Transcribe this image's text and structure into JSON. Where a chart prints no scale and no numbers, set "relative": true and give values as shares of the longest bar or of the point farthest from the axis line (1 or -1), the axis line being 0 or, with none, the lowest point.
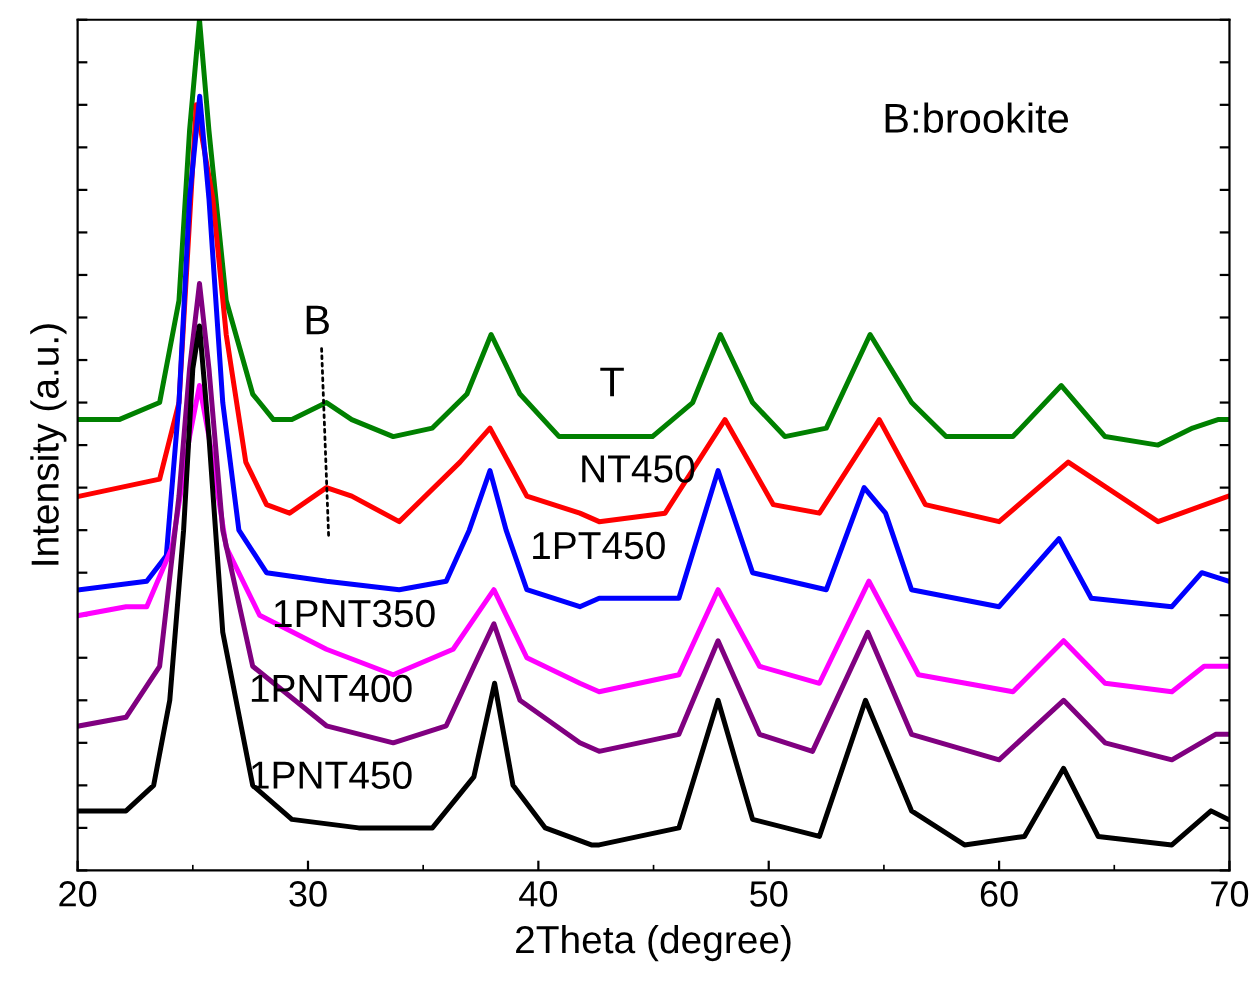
{
  "chart_data": {
    "type": "line",
    "relative": true,
    "xlabel": "2Theta (degree)",
    "ylabel": "Intensity (a.u.)",
    "xlim": [
      20,
      70
    ],
    "xticks": [
      20,
      30,
      40,
      50,
      60,
      70
    ],
    "tick_labels": "x",
    "grid": false,
    "marker": "none",
    "line_style": "solid",
    "annotations": [
      "B:brookite",
      "B",
      "T"
    ],
    "series": [
      {
        "name": null,
        "color": "#008000",
        "x": [
          20.1,
          21.8,
          23.56,
          24.4,
          24.86,
          25.29,
          25.7,
          26.45,
          27.6,
          28.5,
          29.3,
          30.8,
          31.9,
          33.7,
          35.4,
          36.9,
          37.95,
          39.2,
          40.9,
          42.64,
          44.95,
          46.7,
          47.9,
          49.3,
          50.7,
          52.5,
          54.4,
          56.2,
          57.7,
          60.6,
          62.7,
          64.6,
          66.9,
          68.4,
          69.5,
          70.0
        ],
        "values": [
          0.53,
          0.53,
          0.55,
          0.67,
          0.87,
          1.0,
          0.87,
          0.67,
          0.56,
          0.53,
          0.53,
          0.55,
          0.53,
          0.51,
          0.52,
          0.56,
          0.63,
          0.56,
          0.51,
          0.51,
          0.51,
          0.55,
          0.63,
          0.55,
          0.51,
          0.52,
          0.63,
          0.55,
          0.51,
          0.51,
          0.57,
          0.51,
          0.5,
          0.52,
          0.53,
          0.53
        ]
      },
      {
        "name": "NT450",
        "color": "#ff0000",
        "x": [
          20.1,
          23.56,
          24.4,
          25.15,
          25.87,
          26.45,
          27.3,
          28.2,
          29.2,
          30.8,
          31.9,
          33.96,
          36.6,
          37.9,
          39.5,
          41.8,
          42.64,
          45.5,
          48.1,
          50.2,
          52.2,
          54.8,
          56.8,
          60.0,
          63.0,
          66.9,
          69.95
        ],
        "values": [
          0.44,
          0.46,
          0.55,
          0.9,
          0.79,
          0.63,
          0.48,
          0.43,
          0.42,
          0.45,
          0.44,
          0.41,
          0.48,
          0.52,
          0.44,
          0.42,
          0.41,
          0.42,
          0.53,
          0.43,
          0.42,
          0.53,
          0.43,
          0.41,
          0.48,
          0.41,
          0.44
        ]
      },
      {
        "name": "1PT450",
        "color": "#0000ff",
        "x": [
          20.1,
          23.0,
          23.85,
          24.4,
          24.86,
          25.3,
          25.7,
          26.3,
          27.0,
          28.2,
          30.8,
          33.96,
          36.0,
          37.0,
          37.9,
          38.6,
          39.5,
          41.8,
          42.64,
          46.1,
          47.8,
          49.3,
          52.5,
          54.14,
          55.07,
          56.2,
          60.0,
          62.6,
          64.0,
          67.5,
          68.8,
          69.95
        ],
        "values": [
          0.33,
          0.34,
          0.37,
          0.55,
          0.79,
          0.91,
          0.79,
          0.55,
          0.4,
          0.35,
          0.34,
          0.33,
          0.34,
          0.4,
          0.47,
          0.4,
          0.33,
          0.31,
          0.32,
          0.32,
          0.47,
          0.35,
          0.33,
          0.45,
          0.42,
          0.33,
          0.31,
          0.39,
          0.32,
          0.31,
          0.35,
          0.34
        ]
      },
      {
        "name": "1PNT350",
        "color": "#ff00ff",
        "x": [
          20.1,
          22.1,
          23.0,
          24.1,
          24.86,
          25.29,
          25.7,
          26.45,
          27.9,
          30.8,
          33.7,
          36.3,
          38.07,
          39.5,
          41.8,
          42.64,
          46.1,
          47.8,
          49.6,
          52.2,
          54.35,
          56.5,
          60.6,
          62.8,
          64.6,
          67.5,
          68.9,
          69.95
        ],
        "values": [
          0.3,
          0.31,
          0.31,
          0.38,
          0.51,
          0.57,
          0.51,
          0.38,
          0.3,
          0.26,
          0.23,
          0.26,
          0.33,
          0.25,
          0.22,
          0.21,
          0.23,
          0.33,
          0.24,
          0.22,
          0.34,
          0.23,
          0.21,
          0.27,
          0.22,
          0.21,
          0.24,
          0.24
        ]
      },
      {
        "name": "1PNT400",
        "color": "#800080",
        "x": [
          20.1,
          22.1,
          23.56,
          24.4,
          24.86,
          25.29,
          25.7,
          26.3,
          27.6,
          30.8,
          33.7,
          36.0,
          37.2,
          38.07,
          39.2,
          41.8,
          42.64,
          46.1,
          47.8,
          49.6,
          51.9,
          54.3,
          56.2,
          60.0,
          62.8,
          64.6,
          67.5,
          69.4,
          69.95
        ],
        "values": [
          0.17,
          0.18,
          0.24,
          0.44,
          0.59,
          0.69,
          0.59,
          0.4,
          0.24,
          0.17,
          0.15,
          0.17,
          0.24,
          0.29,
          0.2,
          0.15,
          0.14,
          0.16,
          0.27,
          0.16,
          0.14,
          0.28,
          0.16,
          0.13,
          0.2,
          0.15,
          0.13,
          0.16,
          0.16
        ]
      },
      {
        "name": "1PNT450",
        "color": "#000000",
        "x": [
          20.1,
          22.1,
          23.3,
          24.0,
          24.6,
          25.0,
          25.29,
          25.7,
          26.3,
          27.6,
          29.3,
          32.2,
          35.4,
          37.2,
          38.1,
          38.9,
          40.3,
          42.3,
          42.64,
          46.1,
          47.8,
          49.3,
          52.2,
          54.2,
          56.2,
          58.5,
          61.1,
          62.8,
          64.3,
          67.5,
          69.2,
          69.95
        ],
        "values": [
          0.07,
          0.07,
          0.1,
          0.2,
          0.4,
          0.59,
          0.64,
          0.51,
          0.28,
          0.1,
          0.06,
          0.05,
          0.05,
          0.11,
          0.22,
          0.1,
          0.05,
          0.03,
          0.03,
          0.05,
          0.2,
          0.06,
          0.04,
          0.2,
          0.07,
          0.03,
          0.04,
          0.12,
          0.04,
          0.03,
          0.07,
          0.06
        ]
      }
    ]
  }
}
